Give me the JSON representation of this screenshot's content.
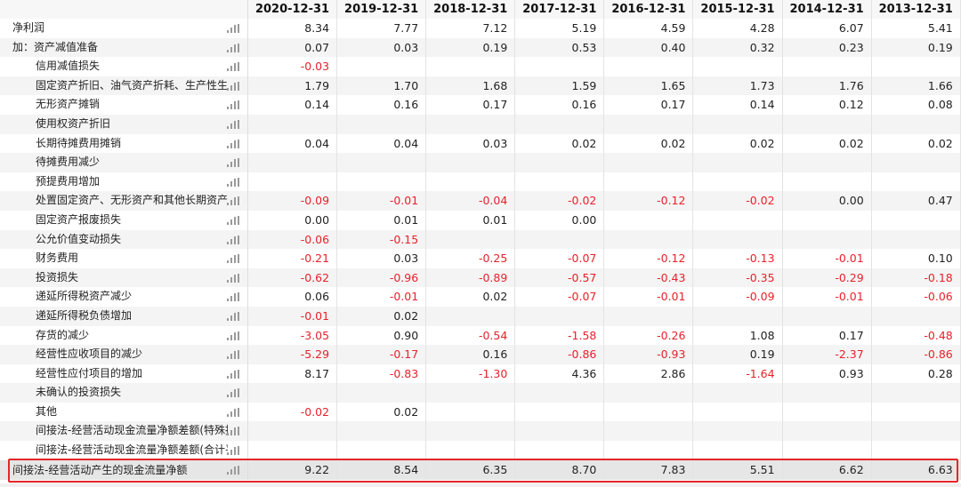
{
  "years": [
    "2020-12-31",
    "2019-12-31",
    "2018-12-31",
    "2017-12-31",
    "2016-12-31",
    "2015-12-31",
    "2014-12-31",
    "2013-12-31"
  ],
  "rows": [
    {
      "label": "净利润",
      "level": 0,
      "values": [
        "8.34",
        "7.77",
        "7.12",
        "5.19",
        "4.59",
        "4.28",
        "6.07",
        "5.41"
      ]
    },
    {
      "label": "加：资产减值准备",
      "level": 0,
      "values": [
        "0.07",
        "0.03",
        "0.19",
        "0.53",
        "0.40",
        "0.32",
        "0.23",
        "0.19"
      ]
    },
    {
      "label": "信用减值损失",
      "level": 1,
      "values": [
        "-0.03",
        "",
        "",
        "",
        "",
        "",
        "",
        ""
      ]
    },
    {
      "label": "固定资产折旧、油气资产折耗、生产性生物资",
      "level": 1,
      "values": [
        "1.79",
        "1.70",
        "1.68",
        "1.59",
        "1.65",
        "1.73",
        "1.76",
        "1.66"
      ]
    },
    {
      "label": "无形资产摊销",
      "level": 1,
      "values": [
        "0.14",
        "0.16",
        "0.17",
        "0.16",
        "0.17",
        "0.14",
        "0.12",
        "0.08"
      ]
    },
    {
      "label": "使用权资产折旧",
      "level": 1,
      "values": [
        "",
        "",
        "",
        "",
        "",
        "",
        "",
        ""
      ]
    },
    {
      "label": "长期待摊费用摊销",
      "level": 1,
      "values": [
        "0.04",
        "0.04",
        "0.03",
        "0.02",
        "0.02",
        "0.02",
        "0.02",
        "0.02"
      ]
    },
    {
      "label": "待摊费用减少",
      "level": 1,
      "values": [
        "",
        "",
        "",
        "",
        "",
        "",
        "",
        ""
      ]
    },
    {
      "label": "预提费用增加",
      "level": 1,
      "values": [
        "",
        "",
        "",
        "",
        "",
        "",
        "",
        ""
      ]
    },
    {
      "label": "处置固定资产、无形资产和其他长期资产的损",
      "level": 1,
      "values": [
        "-0.09",
        "-0.01",
        "-0.04",
        "-0.02",
        "-0.12",
        "-0.02",
        "0.00",
        "0.47"
      ]
    },
    {
      "label": "固定资产报废损失",
      "level": 1,
      "values": [
        "0.00",
        "0.01",
        "0.01",
        "0.00",
        "",
        "",
        "",
        ""
      ]
    },
    {
      "label": "公允价值变动损失",
      "level": 1,
      "values": [
        "-0.06",
        "-0.15",
        "",
        "",
        "",
        "",
        "",
        ""
      ]
    },
    {
      "label": "财务费用",
      "level": 1,
      "values": [
        "-0.21",
        "0.03",
        "-0.25",
        "-0.07",
        "-0.12",
        "-0.13",
        "-0.01",
        "0.10"
      ]
    },
    {
      "label": "投资损失",
      "level": 1,
      "values": [
        "-0.62",
        "-0.96",
        "-0.89",
        "-0.57",
        "-0.43",
        "-0.35",
        "-0.29",
        "-0.18"
      ]
    },
    {
      "label": "递延所得税资产减少",
      "level": 1,
      "values": [
        "0.06",
        "-0.01",
        "0.02",
        "-0.07",
        "-0.01",
        "-0.09",
        "-0.01",
        "-0.06"
      ]
    },
    {
      "label": "递延所得税负债增加",
      "level": 1,
      "values": [
        "-0.01",
        "0.02",
        "",
        "",
        "",
        "",
        "",
        ""
      ]
    },
    {
      "label": "存货的减少",
      "level": 1,
      "values": [
        "-3.05",
        "0.90",
        "-0.54",
        "-1.58",
        "-0.26",
        "1.08",
        "0.17",
        "-0.48"
      ]
    },
    {
      "label": "经营性应收项目的减少",
      "level": 1,
      "values": [
        "-5.29",
        "-0.17",
        "0.16",
        "-0.86",
        "-0.93",
        "0.19",
        "-2.37",
        "-0.86"
      ]
    },
    {
      "label": "经营性应付项目的增加",
      "level": 1,
      "values": [
        "8.17",
        "-0.83",
        "-1.30",
        "4.36",
        "2.86",
        "-1.64",
        "0.93",
        "0.28"
      ]
    },
    {
      "label": "未确认的投资损失",
      "level": 1,
      "values": [
        "",
        "",
        "",
        "",
        "",
        "",
        "",
        ""
      ]
    },
    {
      "label": "其他",
      "level": 1,
      "values": [
        "-0.02",
        "0.02",
        "",
        "",
        "",
        "",
        "",
        ""
      ]
    },
    {
      "label": "间接法-经营活动现金流量净额差额(特殊报表",
      "level": 1,
      "values": [
        "",
        "",
        "",
        "",
        "",
        "",
        "",
        ""
      ]
    },
    {
      "label": "间接法-经营活动现金流量净额差额(合计平衡",
      "level": 1,
      "values": [
        "",
        "",
        "",
        "",
        "",
        "",
        "",
        ""
      ]
    }
  ],
  "total": {
    "label": "间接法-经营活动产生的现金流量净额",
    "values": [
      "9.22",
      "8.54",
      "6.35",
      "8.70",
      "7.83",
      "5.51",
      "6.62",
      "6.63"
    ]
  },
  "colors": {
    "negative": "#e8212b",
    "highlight_border": "#e5252a"
  },
  "icons": {
    "row_chart": "bar-chart-icon"
  }
}
